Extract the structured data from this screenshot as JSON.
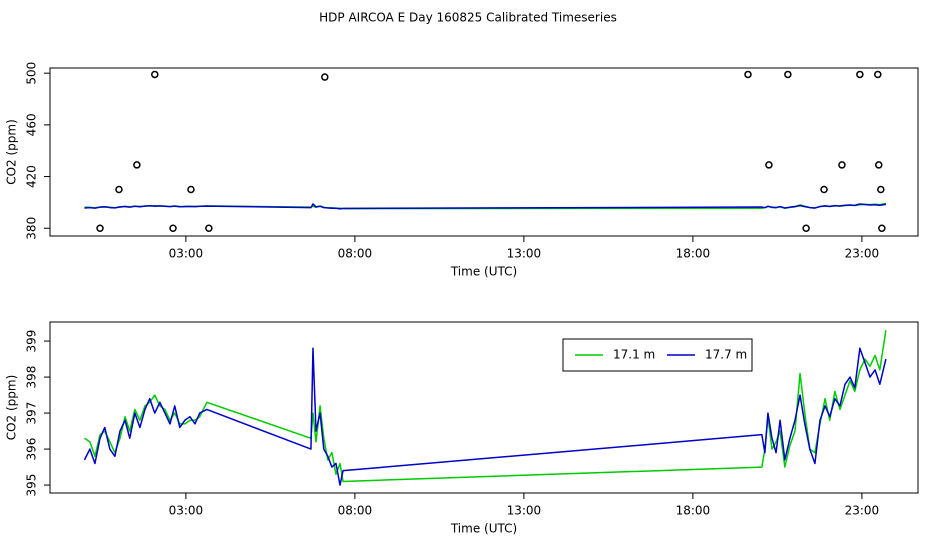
{
  "chart_data": [
    {
      "type": "line",
      "title": "HDP AIRCOA E  Day 160825  Calibrated Timeseries",
      "x_label": "Time (UTC)",
      "y_label": "CO2 (ppm)",
      "xlim": [
        -1.02,
        24.66
      ],
      "ylim": [
        374,
        504
      ],
      "xticks": [
        {
          "value": 3,
          "label": "03:00"
        },
        {
          "value": 8,
          "label": "08:00"
        },
        {
          "value": 13,
          "label": "13:00"
        },
        {
          "value": 18,
          "label": "18:00"
        },
        {
          "value": 23,
          "label": "23:00"
        }
      ],
      "yticks": [
        380,
        420,
        460,
        500
      ],
      "x": [
        0,
        0.16,
        0.31,
        0.46,
        0.6,
        0.75,
        0.9,
        1.05,
        1.2,
        1.34,
        1.49,
        1.64,
        1.79,
        1.93,
        2.08,
        2.23,
        2.38,
        2.53,
        2.67,
        2.82,
        2.97,
        3.12,
        3.27,
        3.41,
        3.62,
        6.7,
        6.76,
        6.85,
        6.97,
        7.08,
        7.2,
        7.32,
        7.44,
        7.56,
        7.65,
        20.04,
        20.13,
        20.22,
        20.34,
        20.46,
        20.58,
        20.72,
        20.87,
        21.02,
        21.17,
        21.31,
        21.46,
        21.61,
        21.76,
        21.91,
        22.05,
        22.2,
        22.35,
        22.5,
        22.65,
        22.79,
        22.94,
        23.09,
        23.24,
        23.39,
        23.53,
        23.71
      ],
      "series": [
        {
          "color": "#00cc00",
          "values": [
            396.3,
            396.2,
            395.8,
            396.4,
            396.5,
            396.2,
            395.9,
            396.3,
            396.9,
            396.5,
            397.1,
            396.8,
            397.2,
            397.3,
            397.5,
            397.2,
            397.1,
            396.8,
            397.0,
            396.7,
            396.7,
            396.8,
            396.8,
            396.9,
            397.3,
            396.3,
            397.0,
            396.2,
            397.2,
            396.3,
            395.7,
            395.9,
            395.3,
            395.6,
            395.1,
            395.5,
            396.0,
            396.9,
            396.0,
            396.2,
            396.5,
            395.5,
            396.1,
            396.5,
            398.1,
            397.0,
            396.0,
            395.9,
            396.7,
            397.4,
            396.8,
            397.6,
            397.1,
            397.5,
            397.9,
            397.6,
            398.2,
            398.5,
            398.3,
            398.6,
            398.2,
            399.3
          ]
        },
        {
          "color": "#0000cc",
          "values": [
            395.7,
            396.0,
            395.6,
            396.3,
            396.6,
            396.0,
            395.8,
            396.5,
            396.8,
            396.3,
            397.0,
            396.6,
            397.1,
            397.4,
            397.0,
            397.3,
            397.0,
            396.7,
            397.2,
            396.6,
            396.8,
            396.9,
            396.7,
            397.0,
            397.1,
            396.0,
            398.8,
            396.5,
            397.0,
            396.0,
            395.8,
            395.5,
            395.6,
            395.0,
            395.4,
            396.4,
            395.9,
            397.0,
            396.3,
            395.9,
            396.8,
            395.7,
            396.3,
            396.8,
            397.5,
            396.7,
            396.0,
            395.6,
            396.8,
            397.2,
            396.9,
            397.4,
            397.2,
            397.8,
            398.0,
            397.7,
            398.8,
            398.4,
            398.0,
            398.2,
            397.8,
            398.5
          ]
        },
        {
          "color": "#000000",
          "style": "points",
          "x": [
            0.46,
            1.02,
            1.55,
            2.08,
            2.62,
            3.15,
            3.68,
            7.11,
            19.63,
            20.25,
            20.81,
            21.35,
            21.88,
            22.41,
            22.94,
            23.47,
            23.5,
            23.56,
            23.59
          ],
          "values": [
            380,
            410,
            429,
            499,
            380,
            410,
            380,
            497,
            499,
            429,
            499,
            380,
            410,
            429,
            499,
            499,
            429,
            410,
            380
          ]
        }
      ]
    },
    {
      "type": "line",
      "x_label": "Time (UTC)",
      "y_label": "CO2 (ppm)",
      "xlim": [
        -1.02,
        24.66
      ],
      "ylim": [
        394.78,
        399.53
      ],
      "xticks": [
        {
          "value": 3,
          "label": "03:00"
        },
        {
          "value": 8,
          "label": "08:00"
        },
        {
          "value": 13,
          "label": "13:00"
        },
        {
          "value": 18,
          "label": "18:00"
        },
        {
          "value": 23,
          "label": "23:00"
        }
      ],
      "yticks": [
        395,
        396,
        397,
        398,
        399
      ],
      "legend": "top-right",
      "x": [
        0,
        0.16,
        0.31,
        0.46,
        0.6,
        0.75,
        0.9,
        1.05,
        1.2,
        1.34,
        1.49,
        1.64,
        1.79,
        1.93,
        2.08,
        2.23,
        2.38,
        2.53,
        2.67,
        2.82,
        2.97,
        3.12,
        3.27,
        3.41,
        3.62,
        6.7,
        6.76,
        6.85,
        6.97,
        7.08,
        7.2,
        7.32,
        7.44,
        7.56,
        7.65,
        20.04,
        20.13,
        20.22,
        20.34,
        20.46,
        20.58,
        20.72,
        20.87,
        21.02,
        21.17,
        21.31,
        21.46,
        21.61,
        21.76,
        21.91,
        22.05,
        22.2,
        22.35,
        22.5,
        22.65,
        22.79,
        22.94,
        23.09,
        23.24,
        23.39,
        23.53,
        23.71
      ],
      "series": [
        {
          "name": "17.1 m",
          "color": "#00cc00",
          "values": [
            396.3,
            396.2,
            395.8,
            396.4,
            396.5,
            396.2,
            395.9,
            396.3,
            396.9,
            396.5,
            397.1,
            396.8,
            397.2,
            397.3,
            397.5,
            397.2,
            397.1,
            396.8,
            397.0,
            396.7,
            396.7,
            396.8,
            396.8,
            396.9,
            397.3,
            396.3,
            397.0,
            396.2,
            397.2,
            396.3,
            395.7,
            395.9,
            395.3,
            395.6,
            395.1,
            395.5,
            396.0,
            396.9,
            396.0,
            396.2,
            396.5,
            395.5,
            396.1,
            396.5,
            398.1,
            397.0,
            396.0,
            395.9,
            396.7,
            397.4,
            396.8,
            397.6,
            397.1,
            397.5,
            397.9,
            397.6,
            398.2,
            398.5,
            398.3,
            398.6,
            398.2,
            399.3
          ]
        },
        {
          "name": "17.7 m",
          "color": "#0000cc",
          "values": [
            395.7,
            396.0,
            395.6,
            396.3,
            396.6,
            396.0,
            395.8,
            396.5,
            396.8,
            396.3,
            397.0,
            396.6,
            397.1,
            397.4,
            397.0,
            397.3,
            397.0,
            396.7,
            397.2,
            396.6,
            396.8,
            396.9,
            396.7,
            397.0,
            397.1,
            396.0,
            398.8,
            396.5,
            397.0,
            396.0,
            395.8,
            395.5,
            395.6,
            395.0,
            395.4,
            396.4,
            395.9,
            397.0,
            396.3,
            395.9,
            396.8,
            395.7,
            396.3,
            396.8,
            397.5,
            396.7,
            396.0,
            395.6,
            396.8,
            397.2,
            396.9,
            397.4,
            397.2,
            397.8,
            398.0,
            397.7,
            398.8,
            398.4,
            398.0,
            398.2,
            397.8,
            398.5
          ]
        }
      ]
    }
  ]
}
